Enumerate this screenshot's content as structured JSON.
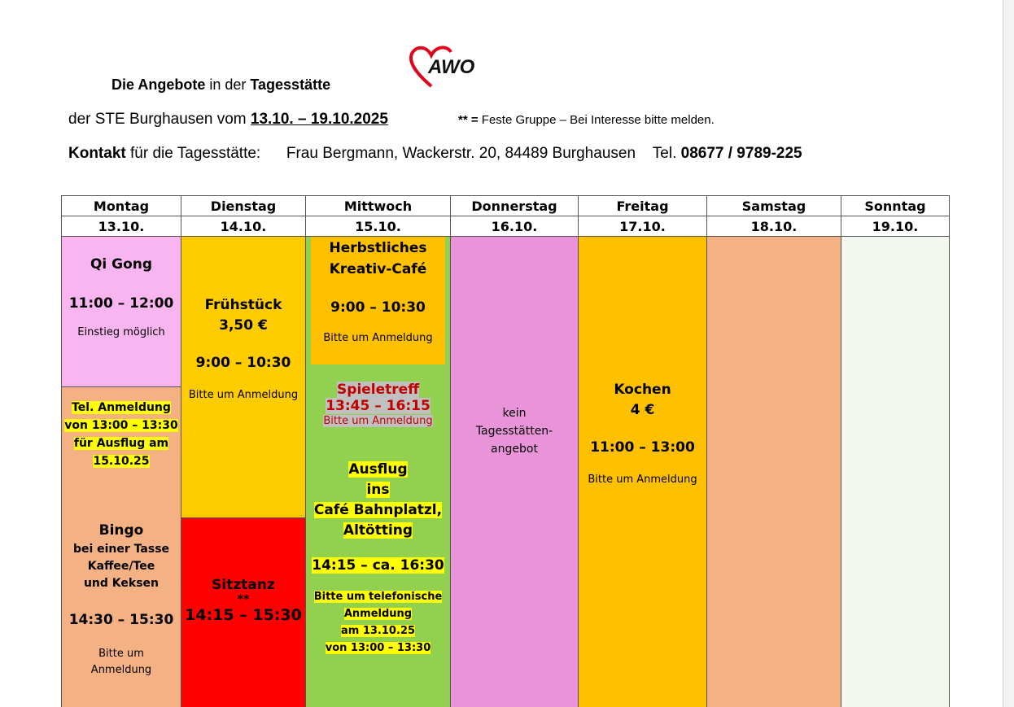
{
  "header": {
    "logo_text": "AWO",
    "title_parts": [
      "Die Angebote",
      " in der ",
      "Tagesstätte"
    ],
    "line2_prefix": "der STE Burghausen vom ",
    "line2_dates": "13.10. – 19.10.2025",
    "note_symbol": "** =",
    "note_text": " Feste Gruppe – Bei Interesse bitte melden.",
    "contact_label": "Kontakt",
    "contact_rest": " für die Tagesstätte:      Frau Bergmann, Wackerstr. 20, 84489 Burghausen    Tel. ",
    "phone": "08677 / 9789-225"
  },
  "days": [
    {
      "name": "Montag",
      "date": "13.10."
    },
    {
      "name": "Dienstag",
      "date": "14.10."
    },
    {
      "name": "Mittwoch",
      "date": "15.10."
    },
    {
      "name": "Donnerstag",
      "date": "16.10."
    },
    {
      "name": "Freitag",
      "date": "17.10."
    },
    {
      "name": "Samstag",
      "date": "18.10."
    },
    {
      "name": "Sonntag",
      "date": "19.10."
    }
  ],
  "monday": {
    "qigong": {
      "title": "Qi Gong",
      "time": "11:00 – 12:00",
      "note": "Einstieg möglich"
    },
    "anmeldung": [
      "Tel. Anmeldung",
      "von 13:00 – 13:30",
      "für Ausflug am",
      "15.10.25"
    ],
    "bingo": {
      "title": "Bingo",
      "lines": [
        "bei einer Tasse",
        "Kaffee/Tee",
        "und Keksen"
      ],
      "time": "14:30 – 15:30",
      "note": [
        "Bitte um",
        "Anmeldung"
      ]
    }
  },
  "tuesday": {
    "fruehstueck": {
      "title": "Frühstück",
      "price": "3,50 €",
      "time": "9:00 – 10:30",
      "note": "Bitte um Anmeldung"
    },
    "sitztanz": {
      "title": "Sitztanz",
      "mark": "**",
      "time": "14:15 – 15:30"
    }
  },
  "wednesday": {
    "cafe": {
      "title": [
        "Herbstliches",
        "Kreativ-Café"
      ],
      "time": "9:00 – 10:30",
      "note": "Bitte um Anmeldung"
    },
    "spieletreff": {
      "title": "Spieletreff",
      "time": "13:45 – 16:15",
      "note": "Bitte um Anmeldung"
    },
    "ausflug": {
      "title": [
        "Ausflug",
        "ins",
        "Café Bahnplatzl,",
        "Altötting"
      ],
      "time": "14:15 – ca. 16:30",
      "note": [
        "Bitte um telefonische",
        "Anmeldung",
        "am 13.10.25",
        "von 13:00 – 13:30"
      ]
    }
  },
  "thursday": {
    "text": [
      "kein",
      "Tagesstätten-",
      "angebot"
    ]
  },
  "friday": {
    "title": "Kochen",
    "price": "4 €",
    "time": "11:00 – 13:00",
    "note": "Bitte um Anmeldung"
  },
  "colors": {
    "qigong": "#f9b5ef",
    "monday_rest": "#f4b183",
    "tuesday": "#ffcc00",
    "sitztanz": "#ff0000",
    "wednesday": "#92d050",
    "cafe": "#ffc000",
    "thursday": "#e994d9",
    "friday": "#ffc000",
    "saturday": "#f4b183",
    "sunday": "#f2f8ee",
    "highlight": "#ffff00"
  }
}
